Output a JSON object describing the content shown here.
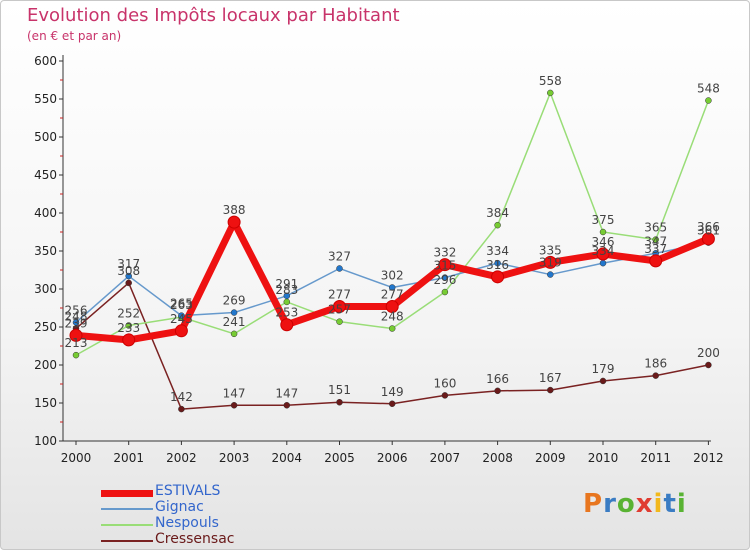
{
  "header": {
    "title": "Evolution des Impôts locaux par Habitant",
    "subtitle": "(en € et par an)"
  },
  "brand": {
    "letters": [
      "P",
      "r",
      "o",
      "x",
      "i",
      "t",
      "i"
    ],
    "colors": [
      "#e8761f",
      "#3a7cc3",
      "#59b333",
      "#e03c31",
      "#f2b81c",
      "#3a7cc3",
      "#59b333"
    ]
  },
  "chart_data": {
    "type": "line",
    "title": "Evolution des Impôts locaux par Habitant",
    "subtitle": "(en € et par an)",
    "x": [
      "2000",
      "2001",
      "2002",
      "2003",
      "2004",
      "2005",
      "2006",
      "2007",
      "2008",
      "2009",
      "2010",
      "2011",
      "2012"
    ],
    "ylim": [
      100,
      600
    ],
    "yticks": [
      100,
      150,
      200,
      250,
      300,
      350,
      400,
      450,
      500,
      550,
      600
    ],
    "grid": false,
    "legend_position": "bottom-left",
    "series": [
      {
        "name": "ESTIVALS",
        "values": [
          239,
          233,
          245,
          388,
          253,
          277,
          277,
          332,
          316,
          335,
          346,
          337,
          366
        ],
        "color": "#ee1111",
        "point_color": "#ee1111"
      },
      {
        "name": "Gignac",
        "values": [
          256,
          317,
          265,
          269,
          291,
          327,
          302,
          315,
          334,
          319,
          334,
          347,
          361
        ],
        "color": "#6699cc",
        "point_color": "#2277cc"
      },
      {
        "name": "Nespouls",
        "values": [
          213,
          252,
          263,
          241,
          283,
          257,
          248,
          296,
          384,
          558,
          375,
          365,
          548
        ],
        "color": "#99dd77",
        "point_color": "#77cc33"
      },
      {
        "name": "Cressensac",
        "values": [
          248,
          308,
          142,
          147,
          147,
          151,
          149,
          160,
          166,
          167,
          179,
          186,
          200
        ],
        "color": "#7a2222",
        "point_color": "#6a1a1a"
      }
    ]
  }
}
